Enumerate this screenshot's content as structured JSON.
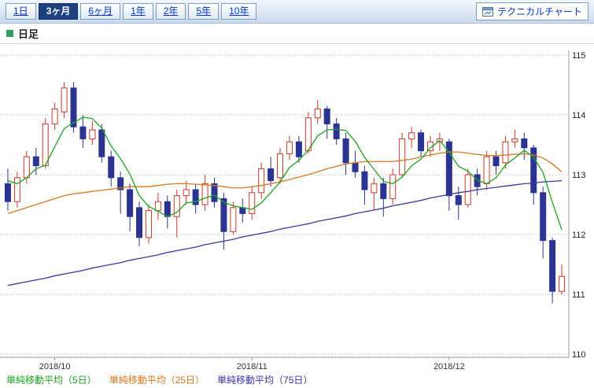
{
  "toolbar": {
    "tabs": [
      {
        "label": "1日",
        "selected": false
      },
      {
        "label": "3ヶ月",
        "selected": true
      },
      {
        "label": "6ヶ月",
        "selected": false
      },
      {
        "label": "1年",
        "selected": false
      },
      {
        "label": "2年",
        "selected": false
      },
      {
        "label": "5年",
        "selected": false
      },
      {
        "label": "10年",
        "selected": false
      }
    ],
    "technical_chart_label": "テクニカルチャート"
  },
  "chart_header": {
    "title": "日足"
  },
  "chart_data": {
    "type": "candlestick",
    "title": "日足",
    "ylim": [
      110,
      115
    ],
    "y_ticks": [
      115,
      114,
      113,
      112,
      111,
      110
    ],
    "x_ticks": [
      {
        "label": "2018/10",
        "index": 5
      },
      {
        "label": "2018/11",
        "index": 26
      },
      {
        "label": "2018/12",
        "index": 47
      }
    ],
    "grid": "horizontal-dotted",
    "legend": [
      "単純移動平均（5日）",
      "単純移動平均（25日）",
      "単純移動平均（75日）"
    ],
    "colors": {
      "up": "#ffffff",
      "up_border": "#c73a28",
      "down": "#2b3490",
      "sma5": "#1fa51f",
      "sma25": "#d9771f",
      "sma75": "#3a35a8",
      "grid": "#b3b3b3",
      "axis": "#999999"
    },
    "candles": [
      [
        112.85,
        113.1,
        112.4,
        112.55
      ],
      [
        112.55,
        113.05,
        112.45,
        112.95
      ],
      [
        112.95,
        113.4,
        112.85,
        113.3
      ],
      [
        113.3,
        113.45,
        113.0,
        113.15
      ],
      [
        113.15,
        113.95,
        113.1,
        113.85
      ],
      [
        113.85,
        114.2,
        113.75,
        114.1
      ],
      [
        114.05,
        114.55,
        113.95,
        114.45
      ],
      [
        114.45,
        114.55,
        113.7,
        113.8
      ],
      [
        113.8,
        114.0,
        113.45,
        113.6
      ],
      [
        113.6,
        113.9,
        113.5,
        113.75
      ],
      [
        113.75,
        113.85,
        113.2,
        113.3
      ],
      [
        113.3,
        113.4,
        112.8,
        112.95
      ],
      [
        112.95,
        113.05,
        112.35,
        112.75
      ],
      [
        112.75,
        112.85,
        112.05,
        112.3
      ],
      [
        112.45,
        112.55,
        111.8,
        111.95
      ],
      [
        111.95,
        112.5,
        111.85,
        112.4
      ],
      [
        112.4,
        112.7,
        112.25,
        112.55
      ],
      [
        112.55,
        112.65,
        112.1,
        112.3
      ],
      [
        112.3,
        112.75,
        111.95,
        112.65
      ],
      [
        112.65,
        112.9,
        112.5,
        112.75
      ],
      [
        112.75,
        112.85,
        112.35,
        112.5
      ],
      [
        112.5,
        113.0,
        112.4,
        112.85
      ],
      [
        112.85,
        112.95,
        112.45,
        112.55
      ],
      [
        112.6,
        112.7,
        111.75,
        112.05
      ],
      [
        112.05,
        112.55,
        112.0,
        112.45
      ],
      [
        112.45,
        112.6,
        112.2,
        112.35
      ],
      [
        112.35,
        112.8,
        112.25,
        112.7
      ],
      [
        112.7,
        113.2,
        112.6,
        113.1
      ],
      [
        113.1,
        113.3,
        112.8,
        112.9
      ],
      [
        112.95,
        113.45,
        112.85,
        113.35
      ],
      [
        113.35,
        113.65,
        113.25,
        113.55
      ],
      [
        113.55,
        113.65,
        113.2,
        113.3
      ],
      [
        113.4,
        114.05,
        113.35,
        113.95
      ],
      [
        113.95,
        114.25,
        113.85,
        114.1
      ],
      [
        114.1,
        114.15,
        113.6,
        113.85
      ],
      [
        113.85,
        113.95,
        113.5,
        113.6
      ],
      [
        113.6,
        113.7,
        113.0,
        113.2
      ],
      [
        113.2,
        113.4,
        112.95,
        113.05
      ],
      [
        113.05,
        113.15,
        112.5,
        112.75
      ],
      [
        112.7,
        112.95,
        112.4,
        112.85
      ],
      [
        112.85,
        112.95,
        112.3,
        112.6
      ],
      [
        112.6,
        113.1,
        112.5,
        113.0
      ],
      [
        113.0,
        113.7,
        112.95,
        113.6
      ],
      [
        113.6,
        113.8,
        113.45,
        113.7
      ],
      [
        113.7,
        113.75,
        113.3,
        113.4
      ],
      [
        113.4,
        113.65,
        113.3,
        113.55
      ],
      [
        113.55,
        113.7,
        113.4,
        113.6
      ],
      [
        113.55,
        113.6,
        112.4,
        112.65
      ],
      [
        112.65,
        112.8,
        112.25,
        112.5
      ],
      [
        112.5,
        113.1,
        112.45,
        113.0
      ],
      [
        113.0,
        113.1,
        112.65,
        112.8
      ],
      [
        112.85,
        113.4,
        112.75,
        113.3
      ],
      [
        113.3,
        113.4,
        113.0,
        113.15
      ],
      [
        113.2,
        113.65,
        113.1,
        113.55
      ],
      [
        113.55,
        113.75,
        113.45,
        113.6
      ],
      [
        113.6,
        113.7,
        113.25,
        113.45
      ],
      [
        113.45,
        113.5,
        112.5,
        112.7
      ],
      [
        112.7,
        112.8,
        111.6,
        111.9
      ],
      [
        111.9,
        111.95,
        110.85,
        111.05
      ],
      [
        111.05,
        111.5,
        111.0,
        111.3
      ]
    ],
    "sma5": [
      112.9,
      112.85,
      112.95,
      113.1,
      113.16,
      113.47,
      113.77,
      113.87,
      113.96,
      113.94,
      113.78,
      113.48,
      113.27,
      113.01,
      112.65,
      112.47,
      112.39,
      112.3,
      112.37,
      112.53,
      112.55,
      112.61,
      112.66,
      112.54,
      112.48,
      112.45,
      112.42,
      112.53,
      112.7,
      112.88,
      113.12,
      113.24,
      113.41,
      113.65,
      113.75,
      113.76,
      113.74,
      113.56,
      113.29,
      113.09,
      112.89,
      112.85,
      112.96,
      113.15,
      113.26,
      113.45,
      113.57,
      113.38,
      113.14,
      113.06,
      112.91,
      112.85,
      112.95,
      113.16,
      113.28,
      113.41,
      113.29,
      113.04,
      112.54,
      112.08
    ],
    "sma25": [
      112.35,
      112.4,
      112.45,
      112.5,
      112.55,
      112.6,
      112.65,
      112.68,
      112.7,
      112.72,
      112.74,
      112.76,
      112.78,
      112.8,
      112.8,
      112.8,
      112.82,
      112.84,
      112.85,
      112.85,
      112.84,
      112.83,
      112.82,
      112.8,
      112.78,
      112.78,
      112.8,
      112.82,
      112.85,
      112.88,
      112.92,
      112.96,
      113.0,
      113.05,
      113.1,
      113.14,
      113.18,
      113.2,
      113.22,
      113.22,
      113.22,
      113.22,
      113.24,
      113.26,
      113.3,
      113.33,
      113.36,
      113.38,
      113.38,
      113.36,
      113.34,
      113.32,
      113.32,
      113.33,
      113.34,
      113.35,
      113.33,
      113.28,
      113.18,
      113.05
    ],
    "sma75": [
      111.15,
      111.18,
      111.21,
      111.24,
      111.27,
      111.31,
      111.34,
      111.37,
      111.4,
      111.44,
      111.47,
      111.5,
      111.53,
      111.57,
      111.6,
      111.63,
      111.66,
      111.7,
      111.73,
      111.76,
      111.79,
      111.83,
      111.86,
      111.89,
      111.92,
      111.96,
      111.99,
      112.02,
      112.05,
      112.09,
      112.12,
      112.15,
      112.18,
      112.22,
      112.25,
      112.28,
      112.31,
      112.35,
      112.38,
      112.41,
      112.44,
      112.48,
      112.51,
      112.54,
      112.57,
      112.61,
      112.64,
      112.67,
      112.7,
      112.72,
      112.75,
      112.77,
      112.79,
      112.81,
      112.83,
      112.85,
      112.86,
      112.88,
      112.89,
      112.9
    ]
  }
}
